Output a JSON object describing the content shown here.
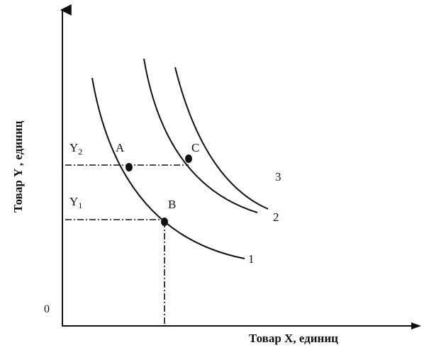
{
  "axes": {
    "y_label": "Товар Y , единиц",
    "x_label": "Товар X, единиц",
    "origin": "0"
  },
  "levels": {
    "y2": {
      "main": "Y",
      "sub": "2"
    },
    "y1": {
      "main": "Y",
      "sub": "1"
    }
  },
  "points": {
    "a": "A",
    "b": "B",
    "c": "C"
  },
  "curves": {
    "c1": "1",
    "c2": "2",
    "c3": "3"
  }
}
